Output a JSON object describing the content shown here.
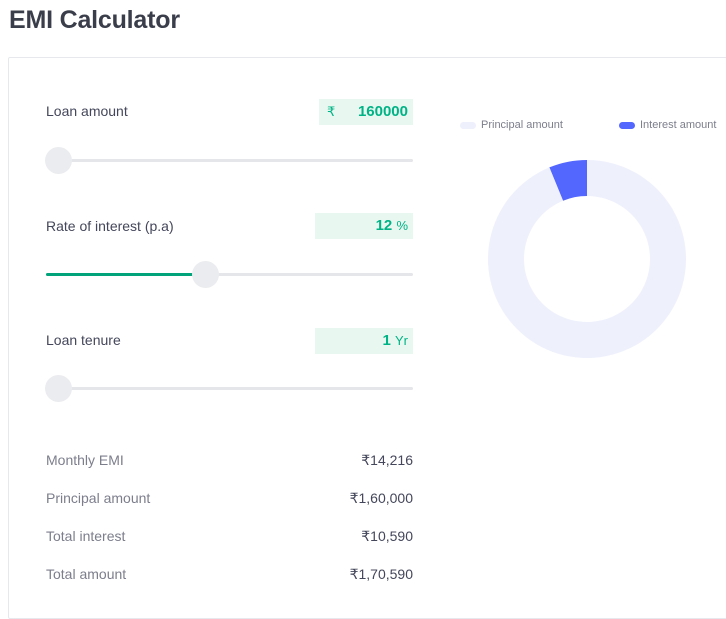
{
  "page": {
    "title": "EMI Calculator"
  },
  "loan_amount": {
    "label": "Loan amount",
    "currency_symbol": "₹",
    "value": "160000",
    "slider_fraction": 0.0
  },
  "rate": {
    "label": "Rate of interest (p.a)",
    "value": "12",
    "unit": "%",
    "slider_fraction": 0.4
  },
  "tenure": {
    "label": "Loan tenure",
    "value": "1",
    "unit": "Yr",
    "slider_fraction": 0.0
  },
  "summary": [
    {
      "label": "Monthly EMI",
      "value": "₹14,216"
    },
    {
      "label": "Principal amount",
      "value": "₹1,60,000"
    },
    {
      "label": "Total interest",
      "value": "₹10,590"
    },
    {
      "label": "Total amount",
      "value": "₹1,70,590"
    }
  ],
  "legend": {
    "principal": {
      "label": "Principal amount",
      "color": "#eef0fc"
    },
    "interest": {
      "label": "Interest amount",
      "color": "#5367ff"
    }
  },
  "chart_data": {
    "type": "pie",
    "style": "donut",
    "categories": [
      "Principal amount",
      "Interest amount"
    ],
    "values": [
      160000,
      10590
    ],
    "colors": [
      "#eef0fc",
      "#5367ff"
    ],
    "legend_position": "top",
    "title": ""
  }
}
